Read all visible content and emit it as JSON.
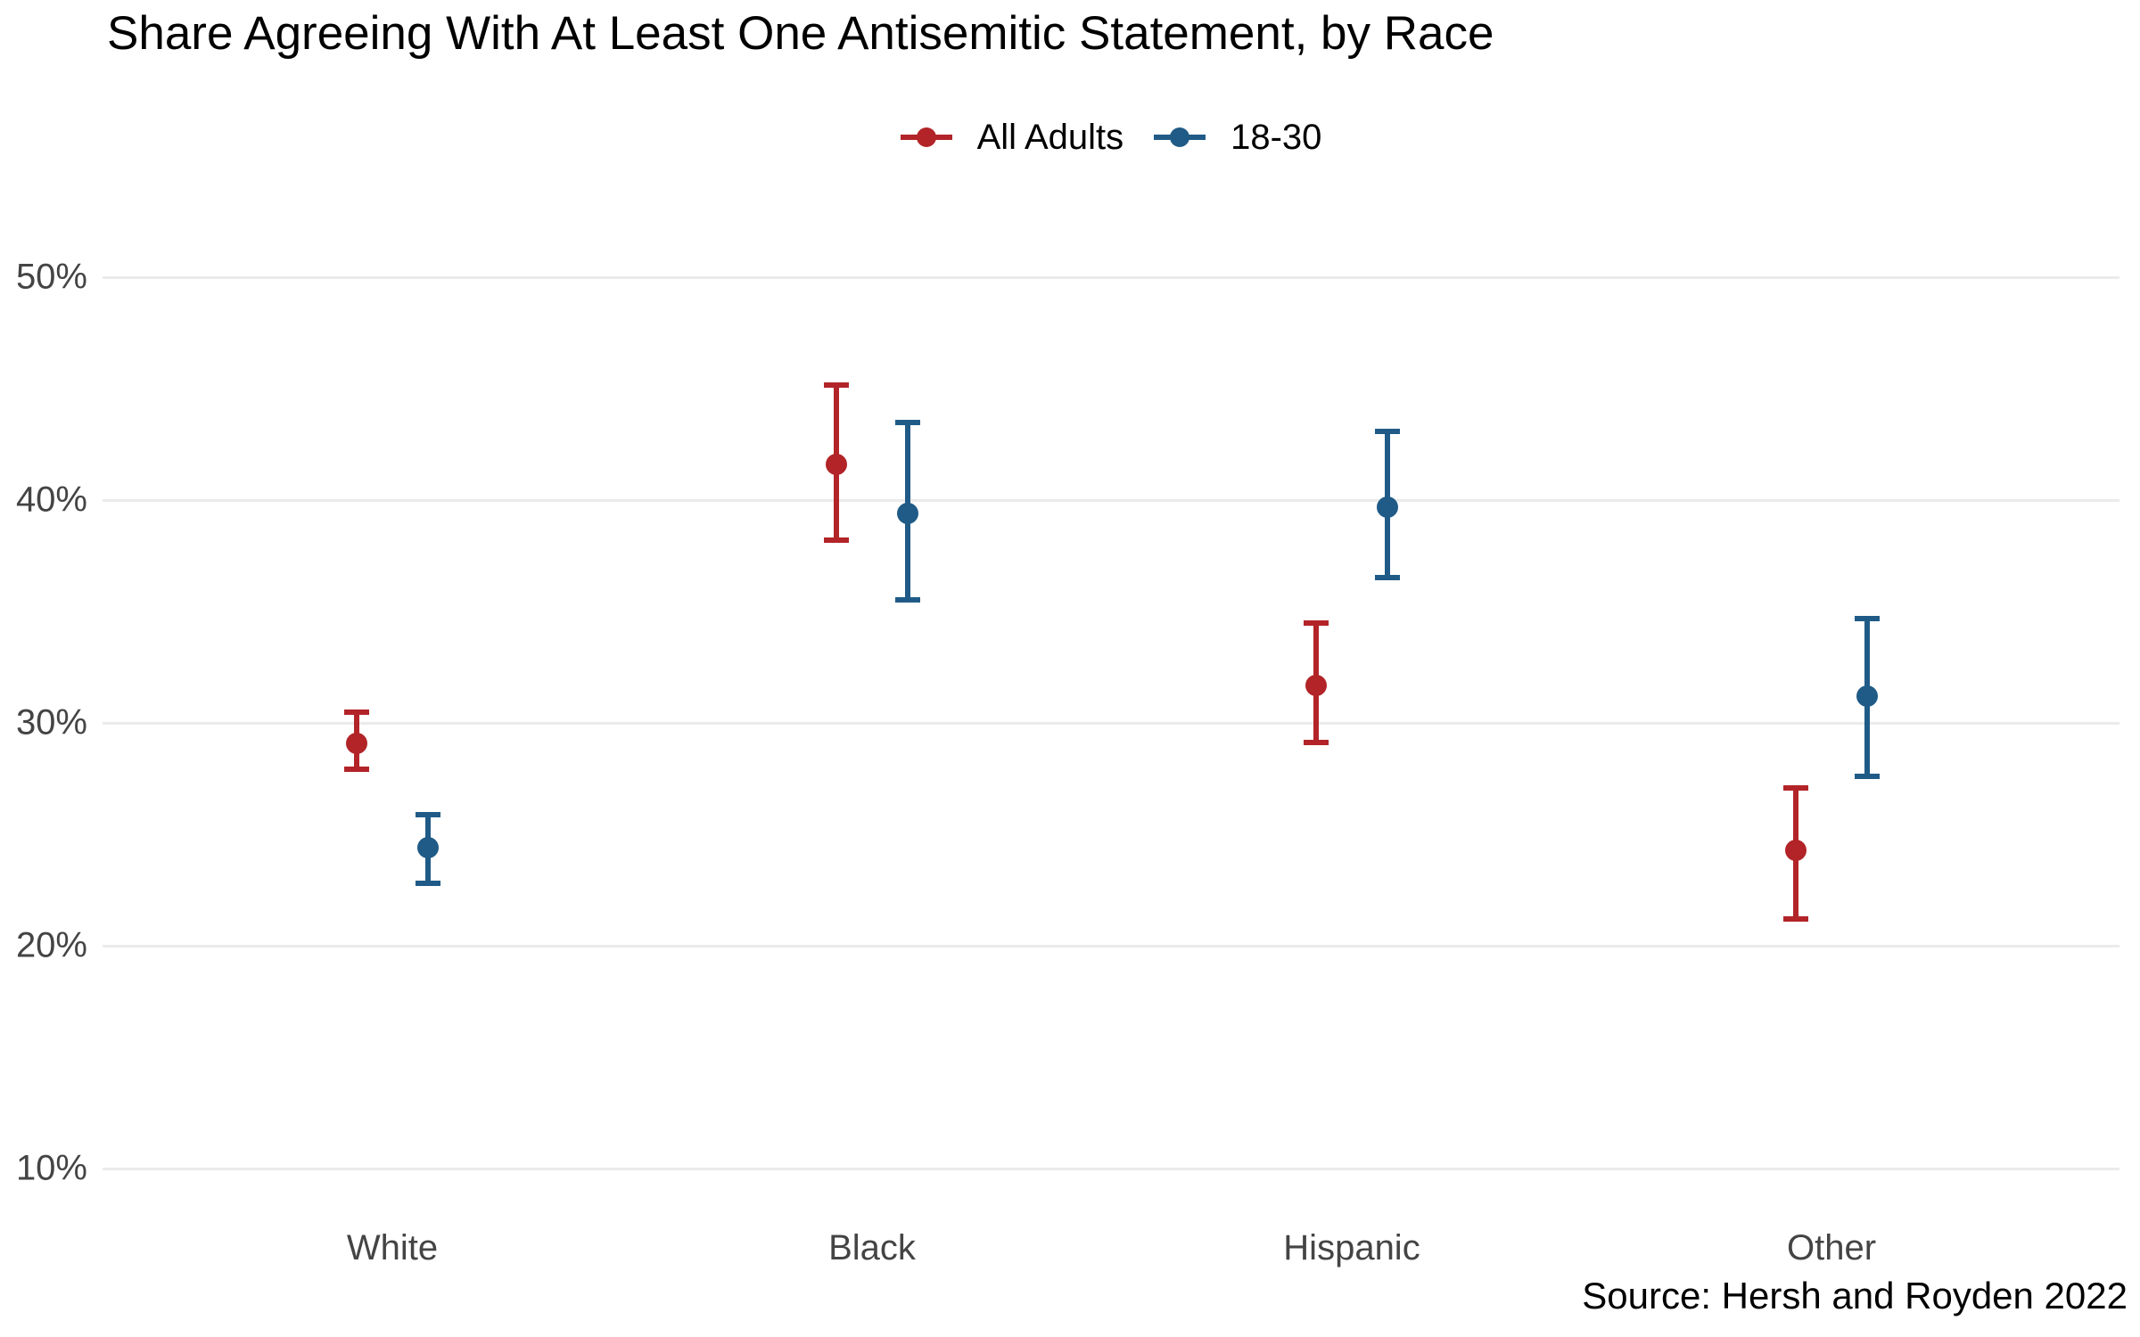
{
  "chart_data": {
    "type": "scatter",
    "subtype": "dot-with-error-bars",
    "title": "Share Agreeing With At Least One Antisemitic Statement, by Race",
    "source": "Source: Hersh and Royden 2022",
    "categories": [
      "White",
      "Black",
      "Hispanic",
      "Other"
    ],
    "series": [
      {
        "name": "All Adults",
        "color": "#B22428",
        "values": [
          29.1,
          41.6,
          31.7,
          24.3
        ],
        "ci_low": [
          27.8,
          38.1,
          29.0,
          21.1
        ],
        "ci_high": [
          30.6,
          45.3,
          34.6,
          27.2
        ]
      },
      {
        "name": "18-30",
        "color": "#205B87",
        "values": [
          24.4,
          39.4,
          39.7,
          31.2
        ],
        "ci_low": [
          22.7,
          35.4,
          36.4,
          27.5
        ],
        "ci_high": [
          26.0,
          43.6,
          43.2,
          34.8
        ]
      }
    ],
    "xlabel": "",
    "ylabel": "",
    "yticks": [
      50,
      40,
      30,
      20,
      10
    ],
    "ytick_labels": [
      "50%",
      "40%",
      "30%",
      "20%",
      "10%"
    ],
    "ylim": [
      8,
      52
    ],
    "grid": "horizontal",
    "legend_position": "top-center",
    "colors": {
      "background": "#FFFFFF",
      "gridline": "#EBEBEB",
      "axis_text": "#444444",
      "title_text": "#000000",
      "source_text": "#000000"
    }
  }
}
